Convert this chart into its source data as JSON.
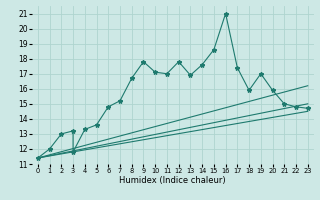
{
  "title": "",
  "xlabel": "Humidex (Indice chaleur)",
  "ylabel": "",
  "xlim": [
    -0.5,
    23.5
  ],
  "ylim": [
    11,
    21.5
  ],
  "yticks": [
    11,
    12,
    13,
    14,
    15,
    16,
    17,
    18,
    19,
    20,
    21
  ],
  "xticks": [
    0,
    1,
    2,
    3,
    4,
    5,
    6,
    7,
    8,
    9,
    10,
    11,
    12,
    13,
    14,
    15,
    16,
    17,
    18,
    19,
    20,
    21,
    22,
    23
  ],
  "bg_color": "#cde8e5",
  "line_color": "#1e7a6e",
  "grid_color": "#afd4cf",
  "series": [
    [
      0,
      11.4
    ],
    [
      1,
      12.0
    ],
    [
      2,
      13.0
    ],
    [
      3,
      13.2
    ],
    [
      3,
      11.8
    ],
    [
      4,
      13.3
    ],
    [
      5,
      13.6
    ],
    [
      6,
      14.8
    ],
    [
      7,
      15.2
    ],
    [
      8,
      16.7
    ],
    [
      9,
      17.8
    ],
    [
      10,
      17.1
    ],
    [
      11,
      17.0
    ],
    [
      12,
      17.8
    ],
    [
      13,
      16.9
    ],
    [
      14,
      17.6
    ],
    [
      15,
      18.6
    ],
    [
      16,
      21.0
    ],
    [
      17,
      17.4
    ],
    [
      18,
      15.9
    ],
    [
      19,
      17.0
    ],
    [
      20,
      15.9
    ],
    [
      21,
      15.0
    ],
    [
      22,
      14.8
    ],
    [
      23,
      14.7
    ]
  ],
  "line1": [
    [
      0,
      11.4
    ],
    [
      23,
      15.0
    ]
  ],
  "line2": [
    [
      0,
      11.4
    ],
    [
      23,
      14.5
    ]
  ],
  "line3": [
    [
      0,
      11.4
    ],
    [
      23,
      16.2
    ]
  ]
}
